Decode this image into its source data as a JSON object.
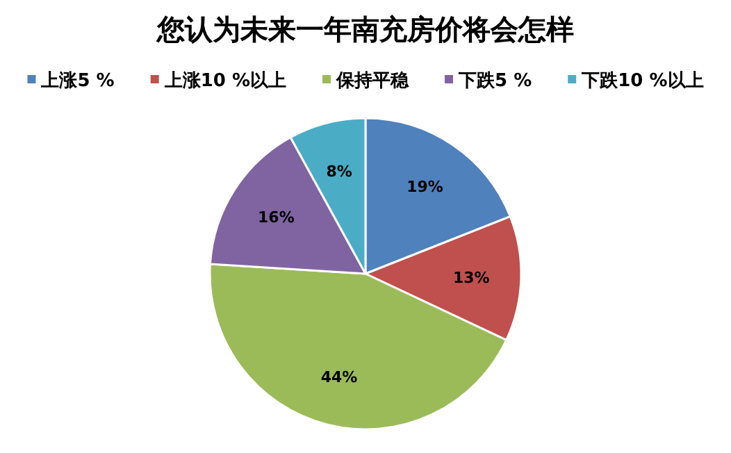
{
  "chart_data": {
    "type": "pie",
    "title": "您认为未来一年南充房价将会怎样",
    "categories": [
      "上涨5 %",
      "上涨10 %以上",
      "保持平稳",
      "下跌5 %",
      "下跌10 %以上"
    ],
    "values": [
      19,
      13,
      44,
      16,
      8
    ],
    "colors": [
      "#4f81bd",
      "#c0504d",
      "#9bbb59",
      "#8064a2",
      "#4bacc6"
    ],
    "value_labels": [
      "19%",
      "13%",
      "44%",
      "16%",
      "8%"
    ],
    "legend": "top"
  }
}
